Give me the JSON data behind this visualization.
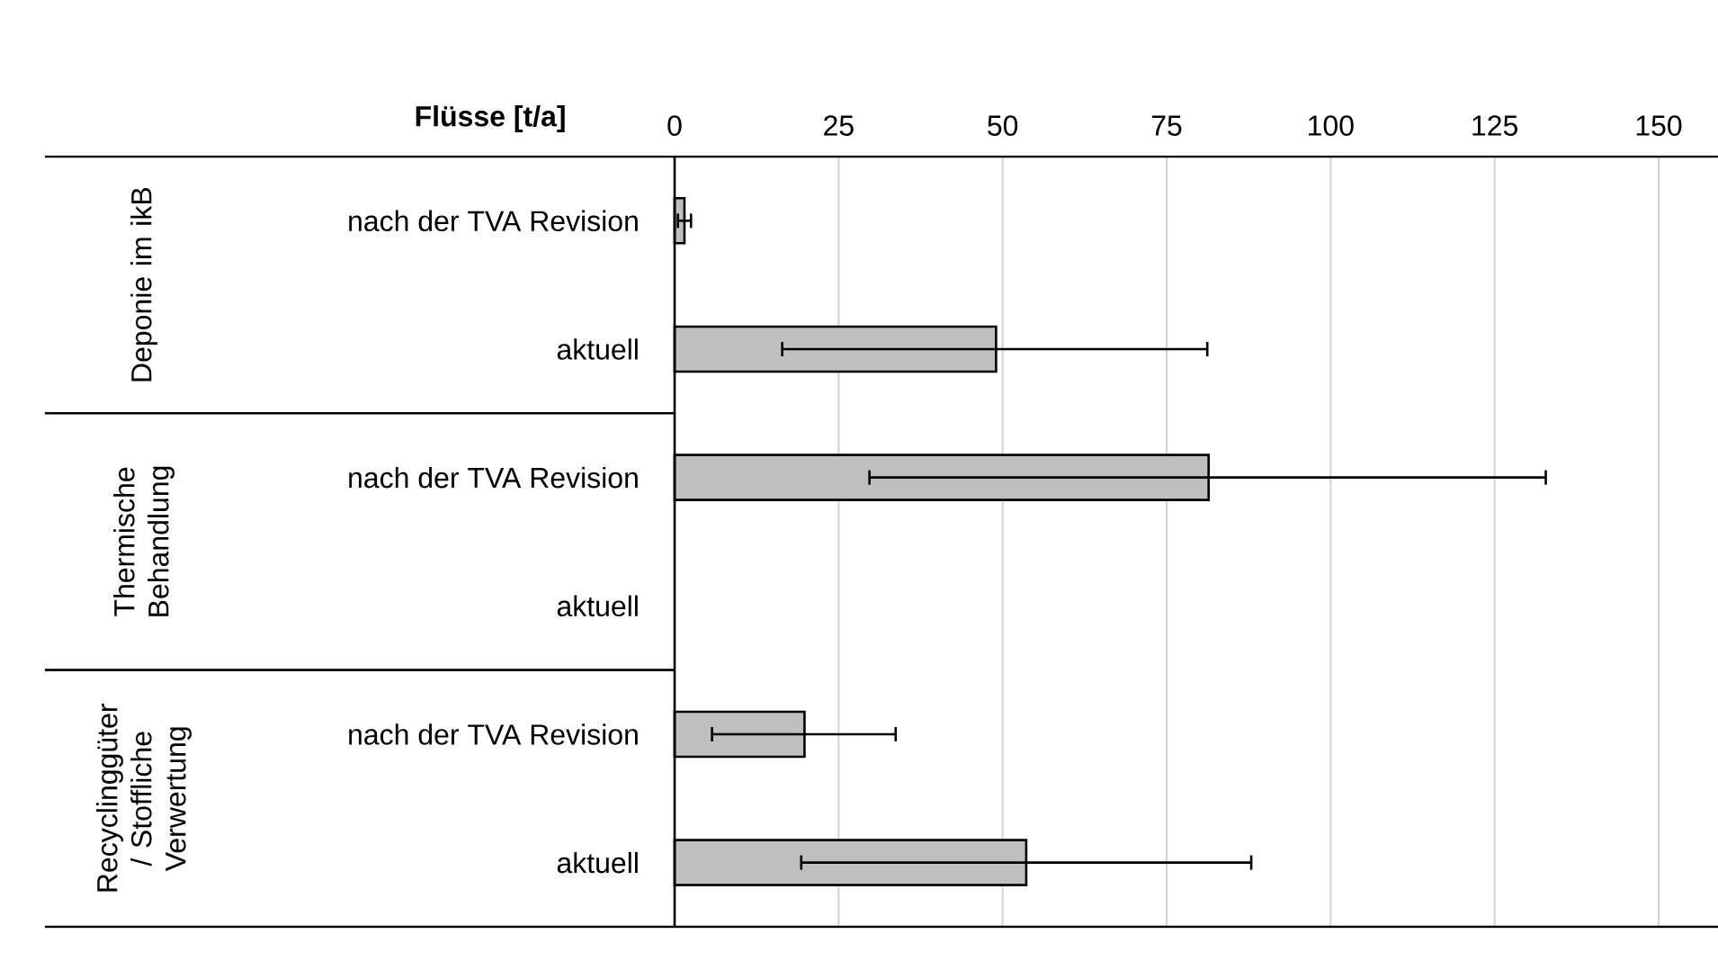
{
  "chart_data": {
    "type": "bar",
    "orientation": "horizontal",
    "xlabel": "Flüsse [t/a]",
    "categories": [
      "nach der TVA Revision",
      "aktuell",
      "nach der TVA Revision",
      "aktuell",
      "nach der TVA Revision",
      "aktuell"
    ],
    "values": [
      1.5,
      49,
      81.4,
      null,
      19.8,
      53.6
    ],
    "errors": [
      1,
      [
        16.4,
        81.2
      ],
      [
        29.7,
        132.8
      ],
      null,
      [
        5.7,
        33.7
      ],
      [
        19.3,
        87.9
      ]
    ],
    "color": "#bfbfbf",
    "xlim": [
      0,
      150
    ],
    "xticks": [
      0,
      25,
      50,
      75,
      100,
      125,
      150
    ],
    "grid": "x",
    "annotations": [
      "Deponie im ikB",
      "Thermische Behandlung",
      "Recyclinggüter / Stoffliche Verwertung"
    ]
  }
}
